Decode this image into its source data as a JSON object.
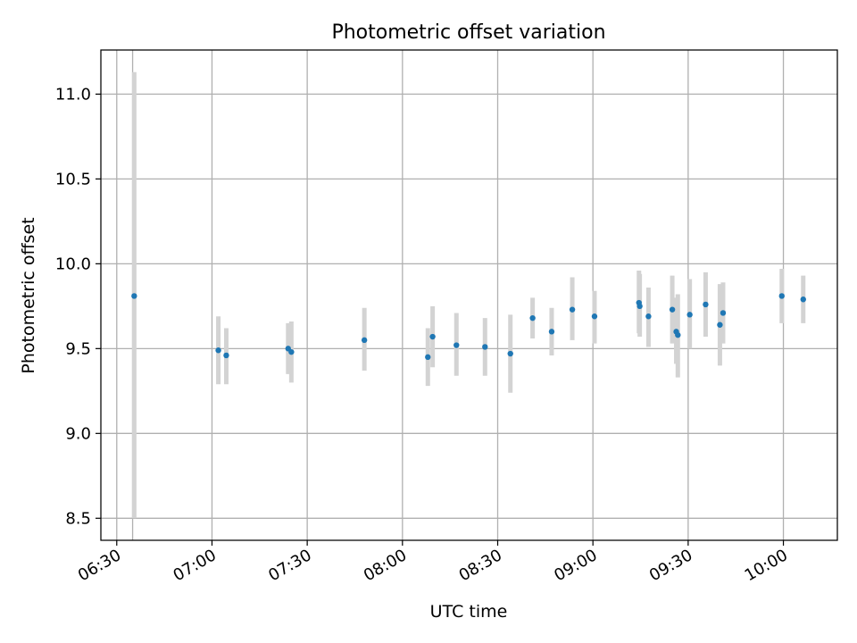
{
  "chart_data": {
    "type": "scatter",
    "title": "Photometric offset variation",
    "xlabel": "UTC time",
    "ylabel": "Photometric offset",
    "x_unit": "time (HH:MM)",
    "xlim": [
      "06:25",
      "10:17"
    ],
    "ylim": [
      8.37,
      11.26
    ],
    "x_ticks": [
      "06:30",
      "07:00",
      "07:30",
      "08:00",
      "08:30",
      "09:00",
      "09:30",
      "10:00"
    ],
    "y_ticks": [
      8.5,
      9.0,
      9.5,
      10.0,
      10.5,
      11.0
    ],
    "y_tick_labels": [
      "8.5",
      "9.0",
      "9.5",
      "10.0",
      "10.5",
      "11.0"
    ],
    "grid": true,
    "error_bar_color": "#d3d3d3",
    "marker_color": "#1f77b4",
    "extra_vertical_gridline": "06:35",
    "points": [
      {
        "t": "06:35:30",
        "y": 9.81,
        "low": 8.5,
        "high": 11.13
      },
      {
        "t": "07:02:00",
        "y": 9.49,
        "low": 9.29,
        "high": 9.69
      },
      {
        "t": "07:04:30",
        "y": 9.46,
        "low": 9.29,
        "high": 9.62
      },
      {
        "t": "07:24:00",
        "y": 9.5,
        "low": 9.35,
        "high": 9.65
      },
      {
        "t": "07:25:00",
        "y": 9.48,
        "low": 9.3,
        "high": 9.66
      },
      {
        "t": "07:48:00",
        "y": 9.55,
        "low": 9.37,
        "high": 9.74
      },
      {
        "t": "08:08:00",
        "y": 9.45,
        "low": 9.28,
        "high": 9.62
      },
      {
        "t": "08:09:30",
        "y": 9.57,
        "low": 9.39,
        "high": 9.75
      },
      {
        "t": "08:17:00",
        "y": 9.52,
        "low": 9.34,
        "high": 9.71
      },
      {
        "t": "08:26:00",
        "y": 9.51,
        "low": 9.34,
        "high": 9.68
      },
      {
        "t": "08:34:00",
        "y": 9.47,
        "low": 9.24,
        "high": 9.7
      },
      {
        "t": "08:41:00",
        "y": 9.68,
        "low": 9.56,
        "high": 9.8
      },
      {
        "t": "08:47:00",
        "y": 9.6,
        "low": 9.46,
        "high": 9.74
      },
      {
        "t": "08:53:30",
        "y": 9.73,
        "low": 9.55,
        "high": 9.92
      },
      {
        "t": "09:00:30",
        "y": 9.69,
        "low": 9.53,
        "high": 9.84
      },
      {
        "t": "09:14:30",
        "y": 9.77,
        "low": 9.59,
        "high": 9.96
      },
      {
        "t": "09:14:45",
        "y": 9.75,
        "low": 9.57,
        "high": 9.94
      },
      {
        "t": "09:17:30",
        "y": 9.69,
        "low": 9.51,
        "high": 9.86
      },
      {
        "t": "09:25:00",
        "y": 9.73,
        "low": 9.53,
        "high": 9.93
      },
      {
        "t": "09:26:15",
        "y": 9.6,
        "low": 9.41,
        "high": 9.8
      },
      {
        "t": "09:26:45",
        "y": 9.58,
        "low": 9.33,
        "high": 9.82
      },
      {
        "t": "09:30:30",
        "y": 9.7,
        "low": 9.5,
        "high": 9.91
      },
      {
        "t": "09:35:30",
        "y": 9.76,
        "low": 9.57,
        "high": 9.95
      },
      {
        "t": "09:40:00",
        "y": 9.64,
        "low": 9.4,
        "high": 9.88
      },
      {
        "t": "09:41:00",
        "y": 9.71,
        "low": 9.53,
        "high": 9.89
      },
      {
        "t": "09:59:30",
        "y": 9.81,
        "low": 9.65,
        "high": 9.97
      },
      {
        "t": "10:06:15",
        "y": 9.79,
        "low": 9.65,
        "high": 9.93
      }
    ]
  }
}
